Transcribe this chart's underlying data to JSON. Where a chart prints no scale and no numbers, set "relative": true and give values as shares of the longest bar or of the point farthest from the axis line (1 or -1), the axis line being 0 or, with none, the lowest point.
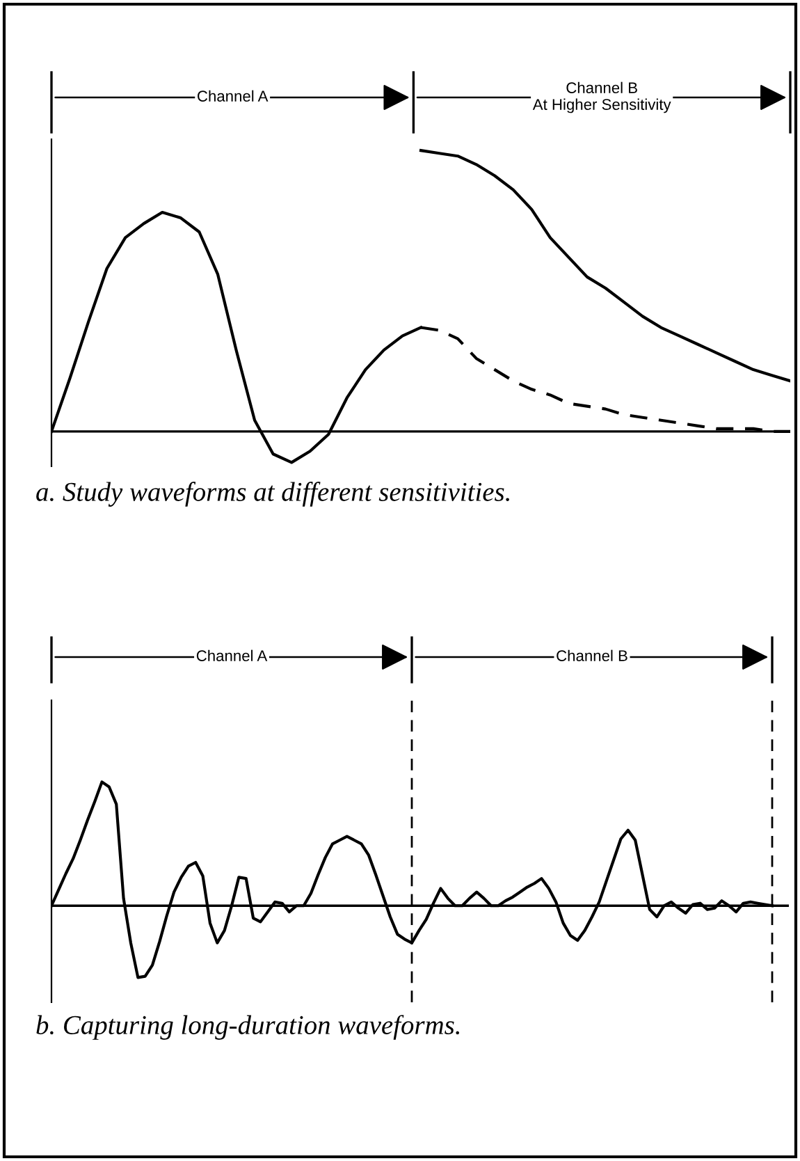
{
  "chart_data": [
    {
      "type": "line",
      "relative": true,
      "annotations": [
        "Channel A",
        "Channel B\nAt Higher Sensitivity",
        "a. Study waveforms at different sensitivities."
      ],
      "categories": [
        null,
        null,
        null,
        null,
        null,
        null,
        null,
        null,
        null,
        null,
        null,
        null,
        null,
        null,
        null,
        null,
        null,
        null,
        null,
        null,
        null,
        null,
        null,
        null,
        null,
        null,
        null,
        null,
        null,
        null,
        null,
        null,
        null,
        null,
        null,
        null,
        null,
        null,
        null,
        null,
        null
      ],
      "series": [
        {
          "color": "#000000",
          "line_style": "solid",
          "values": [
            0,
            0.19,
            0.39,
            0.58,
            0.69,
            0.74,
            0.78,
            0.76,
            0.71,
            0.56,
            0.29,
            0.04,
            -0.08,
            -0.11,
            -0.07,
            -0.01,
            0.12,
            0.22,
            0.29,
            0.34,
            0.37,
            null,
            null,
            null,
            null,
            null,
            null,
            null,
            null,
            null,
            null,
            null,
            null,
            null,
            null,
            null,
            null,
            null,
            null,
            null,
            null
          ]
        },
        {
          "color": "#000000",
          "line_style": "dashed",
          "values": [
            null,
            null,
            null,
            null,
            null,
            null,
            null,
            null,
            null,
            null,
            null,
            null,
            null,
            null,
            null,
            null,
            null,
            null,
            null,
            null,
            0.37,
            0.36,
            0.33,
            0.26,
            0.22,
            0.18,
            0.15,
            0.13,
            0.1,
            0.09,
            0.08,
            0.06,
            0.05,
            0.04,
            0.03,
            0.02,
            0.01,
            0.01,
            0.01,
            0,
            0
          ]
        },
        {
          "color": "#000000",
          "line_style": "solid",
          "values": [
            null,
            null,
            null,
            null,
            null,
            null,
            null,
            null,
            null,
            null,
            null,
            null,
            null,
            null,
            null,
            null,
            null,
            null,
            null,
            null,
            1.0,
            0.99,
            0.98,
            0.95,
            0.91,
            0.86,
            0.79,
            0.69,
            0.62,
            0.55,
            0.51,
            0.46,
            0.41,
            0.37,
            0.34,
            0.31,
            0.28,
            0.25,
            0.22,
            0.2,
            0.18
          ]
        }
      ]
    },
    {
      "type": "line",
      "relative": true,
      "annotations": [
        "Channel A",
        "Channel B",
        "b. Capturing long-duration waveforms."
      ],
      "categories": [
        null,
        null,
        null,
        null,
        null,
        null,
        null,
        null,
        null,
        null,
        null,
        null,
        null,
        null,
        null,
        null,
        null,
        null,
        null,
        null,
        null,
        null,
        null,
        null,
        null,
        null,
        null,
        null,
        null,
        null,
        null,
        null,
        null,
        null,
        null,
        null,
        null,
        null,
        null,
        null,
        null,
        null,
        null,
        null,
        null,
        null,
        null,
        null,
        null,
        null,
        null,
        null,
        null,
        null,
        null,
        null,
        null,
        null,
        null,
        null,
        null,
        null,
        null,
        null,
        null,
        null,
        null,
        null,
        null,
        null,
        null,
        null,
        null,
        null,
        null,
        null,
        null,
        null,
        null,
        null,
        null,
        null,
        null,
        null,
        null,
        null,
        null,
        null,
        null,
        null,
        null,
        null,
        null,
        null,
        null,
        null,
        null,
        null,
        null,
        null,
        null
      ],
      "series": [
        {
          "color": "#000000",
          "line_style": "solid",
          "values": [
            0,
            0.13,
            0.26,
            0.38,
            0.53,
            0.69,
            0.84,
            1.0,
            0.96,
            0.82,
            0.06,
            -0.3,
            -0.58,
            -0.57,
            -0.48,
            -0.29,
            -0.08,
            0.11,
            0.23,
            0.32,
            0.35,
            0.24,
            -0.14,
            -0.3,
            -0.2,
            0,
            0.23,
            0.22,
            -0.1,
            -0.13,
            -0.05,
            0.03,
            0.02,
            -0.05,
            0,
            0,
            0.1,
            0.25,
            0.39,
            0.5,
            0.53,
            0.56,
            0.53,
            0.5,
            0.41,
            0.25,
            0.08,
            -0.09,
            -0.23,
            -0.27,
            -0.3,
            -0.2,
            -0.11,
            0.02,
            0.14,
            0.06,
            0,
            0,
            0.06,
            0.11,
            0.06,
            0,
            0,
            0.04,
            0.07,
            0.11,
            0.15,
            0.18,
            0.22,
            0.14,
            0.03,
            -0.14,
            -0.24,
            -0.28,
            -0.2,
            -0.09,
            0.03,
            0.2,
            0.37,
            0.54,
            0.61,
            0.53,
            0.25,
            -0.03,
            -0.09,
            0,
            0.03,
            -0.02,
            -0.06,
            0.01,
            0.02,
            -0.03,
            -0.02,
            0.04,
            0,
            -0.05,
            0.02,
            0.03,
            0.02,
            0.01,
            0
          ]
        }
      ]
    }
  ]
}
